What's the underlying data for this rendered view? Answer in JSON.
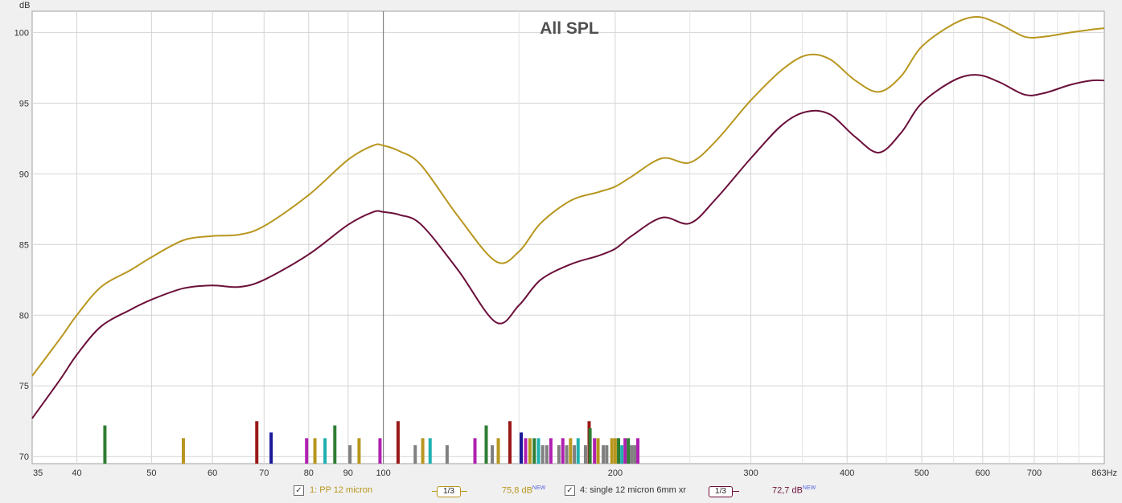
{
  "chart_data": {
    "type": "line",
    "title": "All SPL",
    "ylabel": "dB",
    "xlabel": "",
    "x_scale": "log",
    "xlim": [
      35,
      863
    ],
    "ylim": [
      69.5,
      101.5
    ],
    "yticks": [
      70,
      75,
      80,
      85,
      90,
      95,
      100
    ],
    "xticks": [
      35,
      40,
      50,
      60,
      70,
      80,
      90,
      100,
      200,
      300,
      400,
      500,
      600,
      700,
      863
    ],
    "xtick_labels": [
      "35",
      "40",
      "50",
      "60",
      "70",
      "80",
      "90",
      "100",
      "200",
      "300",
      "400",
      "500",
      "600",
      "700",
      "863Hz"
    ],
    "xgrid_minor": [
      150,
      250,
      350,
      450,
      550,
      650,
      750,
      800
    ],
    "grid": true,
    "cursor_x": 100,
    "series": [
      {
        "name": "1: PP 12 micron",
        "color": "#b8961e",
        "x": [
          35,
          38,
          40,
          43,
          47,
          50,
          55,
          60,
          65,
          70,
          80,
          90,
          97,
          100,
          105,
          112,
          125,
          140,
          150,
          160,
          175,
          190,
          200,
          210,
          230,
          250,
          270,
          300,
          330,
          355,
          380,
          410,
          440,
          470,
          500,
          550,
          590,
          630,
          680,
          720,
          780,
          830,
          863
        ],
        "y": [
          75.7,
          78.3,
          80.0,
          82.0,
          83.2,
          84.1,
          85.3,
          85.6,
          85.7,
          86.3,
          88.5,
          91.0,
          92.0,
          92.0,
          91.6,
          90.6,
          87.0,
          83.8,
          84.5,
          86.5,
          88.1,
          88.7,
          89.1,
          89.8,
          91.1,
          90.8,
          92.3,
          95.2,
          97.4,
          98.4,
          98.1,
          96.6,
          95.8,
          96.9,
          99.0,
          100.6,
          101.1,
          100.6,
          99.7,
          99.7,
          100.0,
          100.2,
          100.3
        ]
      },
      {
        "name": "4: single 12 micron 6mm xr",
        "color": "#6b0f3a",
        "x": [
          35,
          38,
          40,
          43,
          47,
          50,
          55,
          60,
          65,
          70,
          80,
          90,
          97,
          100,
          105,
          112,
          125,
          140,
          150,
          160,
          175,
          190,
          200,
          210,
          230,
          250,
          270,
          300,
          330,
          355,
          380,
          410,
          440,
          470,
          500,
          550,
          590,
          630,
          680,
          720,
          780,
          830,
          863
        ],
        "y": [
          72.7,
          75.4,
          77.2,
          79.2,
          80.4,
          81.1,
          81.9,
          82.1,
          82.0,
          82.5,
          84.3,
          86.4,
          87.3,
          87.3,
          87.1,
          86.4,
          83.2,
          79.5,
          80.7,
          82.5,
          83.6,
          84.2,
          84.7,
          85.6,
          86.9,
          86.5,
          88.2,
          91.1,
          93.5,
          94.4,
          94.2,
          92.6,
          91.5,
          92.9,
          95.0,
          96.6,
          97.0,
          96.5,
          95.6,
          95.7,
          96.3,
          96.6,
          96.6
        ]
      }
    ],
    "peak_markers": [
      {
        "x": 43.5,
        "h": 72.2,
        "c": "#2e7d32"
      },
      {
        "x": 55,
        "h": 71.3,
        "c": "#b8961e"
      },
      {
        "x": 68.5,
        "h": 72.5,
        "c": "#9a1818"
      },
      {
        "x": 71.5,
        "h": 71.7,
        "c": "#1a1a99"
      },
      {
        "x": 79.5,
        "h": 71.3,
        "c": "#b020b0"
      },
      {
        "x": 81.5,
        "h": 71.3,
        "c": "#b8961e"
      },
      {
        "x": 84,
        "h": 71.3,
        "c": "#20b0b0"
      },
      {
        "x": 86.5,
        "h": 72.2,
        "c": "#2e7d32"
      },
      {
        "x": 90.5,
        "h": 70.8,
        "c": "#808080"
      },
      {
        "x": 93,
        "h": 71.3,
        "c": "#b8961e"
      },
      {
        "x": 99,
        "h": 71.3,
        "c": "#b020b0"
      },
      {
        "x": 104.5,
        "h": 72.5,
        "c": "#9a1818"
      },
      {
        "x": 110,
        "h": 70.8,
        "c": "#808080"
      },
      {
        "x": 112.5,
        "h": 71.3,
        "c": "#b8961e"
      },
      {
        "x": 115,
        "h": 71.3,
        "c": "#20b0b0"
      },
      {
        "x": 121,
        "h": 70.8,
        "c": "#808080"
      },
      {
        "x": 131.5,
        "h": 71.3,
        "c": "#b020b0"
      },
      {
        "x": 136,
        "h": 72.2,
        "c": "#2e7d32"
      },
      {
        "x": 138.5,
        "h": 70.8,
        "c": "#808080"
      },
      {
        "x": 141,
        "h": 71.3,
        "c": "#b8961e"
      },
      {
        "x": 146,
        "h": 72.5,
        "c": "#9a1818"
      },
      {
        "x": 151,
        "h": 71.7,
        "c": "#1a1a99"
      },
      {
        "x": 153,
        "h": 71.3,
        "c": "#b020b0"
      },
      {
        "x": 155,
        "h": 71.3,
        "c": "#b8961e"
      },
      {
        "x": 157,
        "h": 71.3,
        "c": "#2e7d32"
      },
      {
        "x": 159,
        "h": 71.3,
        "c": "#20b0b0"
      },
      {
        "x": 161,
        "h": 70.8,
        "c": "#808080"
      },
      {
        "x": 163,
        "h": 70.8,
        "c": "#808080"
      },
      {
        "x": 165,
        "h": 71.3,
        "c": "#b020b0"
      },
      {
        "x": 169,
        "h": 70.8,
        "c": "#808080"
      },
      {
        "x": 171,
        "h": 71.3,
        "c": "#b020b0"
      },
      {
        "x": 173,
        "h": 70.8,
        "c": "#808080"
      },
      {
        "x": 175,
        "h": 71.3,
        "c": "#b8961e"
      },
      {
        "x": 177,
        "h": 70.8,
        "c": "#808080"
      },
      {
        "x": 179,
        "h": 71.3,
        "c": "#20b0b0"
      },
      {
        "x": 183,
        "h": 70.8,
        "c": "#808080"
      },
      {
        "x": 185,
        "h": 72.5,
        "c": "#9a1818"
      },
      {
        "x": 185.5,
        "h": 72.0,
        "c": "#2e7d32"
      },
      {
        "x": 188,
        "h": 71.3,
        "c": "#b020b0"
      },
      {
        "x": 190,
        "h": 71.3,
        "c": "#b8961e"
      },
      {
        "x": 193,
        "h": 70.8,
        "c": "#808080"
      },
      {
        "x": 195,
        "h": 70.8,
        "c": "#808080"
      },
      {
        "x": 198,
        "h": 71.3,
        "c": "#b8961e"
      },
      {
        "x": 200,
        "h": 71.3,
        "c": "#b8961e"
      },
      {
        "x": 202,
        "h": 71.3,
        "c": "#2e7d32"
      },
      {
        "x": 204,
        "h": 70.8,
        "c": "#20b0b0"
      },
      {
        "x": 206,
        "h": 71.3,
        "c": "#b020b0"
      },
      {
        "x": 208,
        "h": 71.3,
        "c": "#2e7d32"
      },
      {
        "x": 210,
        "h": 70.8,
        "c": "#808080"
      },
      {
        "x": 212,
        "h": 70.8,
        "c": "#808080"
      },
      {
        "x": 214,
        "h": 71.3,
        "c": "#b020b0"
      }
    ]
  },
  "legend": {
    "items": [
      {
        "name": "1: PP 12 micron",
        "smoothing": "1/3",
        "level": "75,8 dB",
        "badge": "NEW",
        "color": "#b8961e",
        "checked": "✓"
      },
      {
        "name": "4: single 12 micron 6mm xr",
        "smoothing": "1/3",
        "level": "72,7 dB",
        "badge": "NEW",
        "color": "#6b0f3a",
        "checked": "✓"
      }
    ]
  }
}
